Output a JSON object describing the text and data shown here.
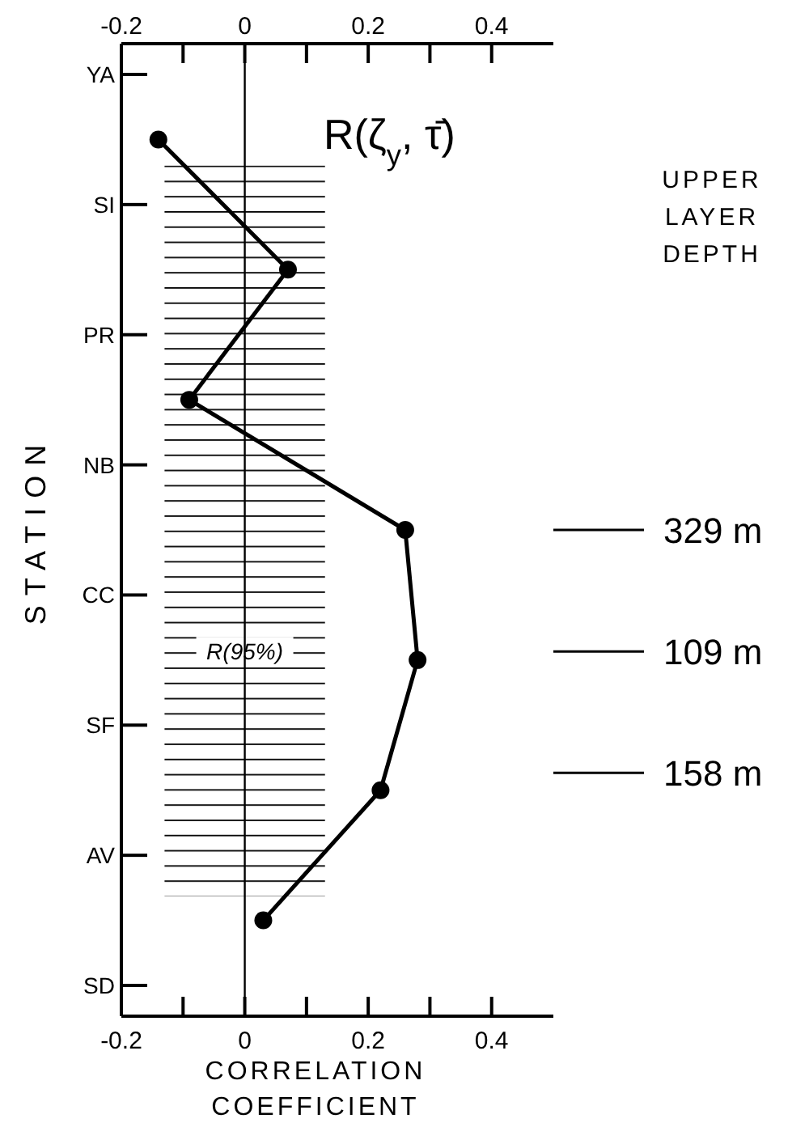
{
  "chart_data": {
    "type": "line",
    "orientation": "horizontal",
    "categories": [
      "YA",
      null,
      "SI",
      null,
      "PR",
      null,
      "NB",
      null,
      "CC",
      null,
      "SF",
      null,
      "AV",
      null,
      "SD"
    ],
    "series": [
      {
        "color": "#000000",
        "values": [
          null,
          -0.14,
          null,
          0.07,
          null,
          -0.09,
          null,
          0.26,
          null,
          0.28,
          null,
          0.22,
          null,
          0.03,
          null
        ]
      }
    ],
    "xlim": [
      -0.2,
      0.5
    ],
    "xticks": [
      -0.2,
      {
        "value": -0.1,
        "label": null
      },
      0,
      {
        "value": 0.1,
        "label": null
      },
      0.2,
      {
        "value": 0.3,
        "label": null
      },
      0.4
    ],
    "x2lim": [
      -0.2,
      0.5
    ],
    "x2ticks": [
      -0.2,
      {
        "value": -0.1,
        "label": null
      },
      0,
      {
        "value": 0.1,
        "label": null
      },
      0.2,
      {
        "value": 0.3,
        "label": null
      },
      0.4
    ],
    "xlabel": "CORRELATION COEFFICIENT",
    "ylabel": "STATION",
    "marker": "circle",
    "line_style": "solid",
    "ref_lines": [
      {
        "axis": "x",
        "value": 0,
        "color": "#000000"
      }
    ],
    "bands": [
      {
        "axis": "x",
        "from": -0.13,
        "to": 0.13,
        "label": "R(95%)",
        "color": "#000000"
      }
    ],
    "annotations": [
      "R(ζ$_{y}$, τ̄)",
      "UPPER LAYER DEPTH",
      {
        "text": "329 m"
      },
      {
        "text": "109 m"
      },
      {
        "text": "158 m"
      }
    ]
  }
}
